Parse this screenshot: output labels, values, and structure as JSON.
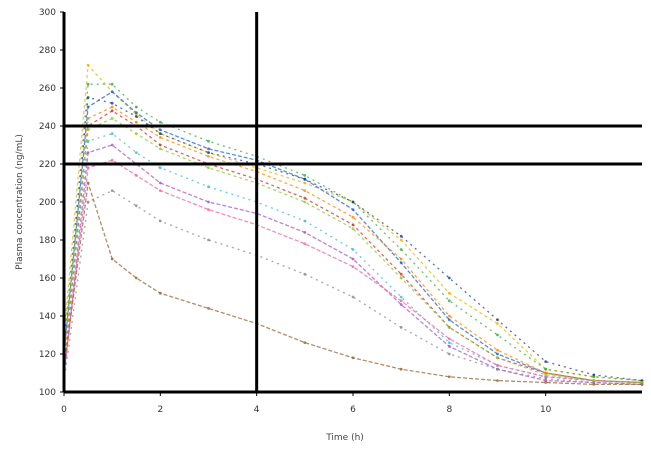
{
  "chart_data": {
    "type": "line",
    "title": "",
    "xlabel": "Time (h)",
    "ylabel": "Plasma concentration (ng/mL)",
    "xlim": [
      0,
      12
    ],
    "ylim": [
      100,
      300
    ],
    "x_ticks": [
      0,
      2,
      4,
      6,
      8,
      10
    ],
    "x_tick_labels": [
      "0",
      "2",
      "4",
      "6",
      "8",
      "10"
    ],
    "y_ticks": [
      100,
      120,
      140,
      160,
      180,
      200,
      220,
      240,
      260,
      280,
      300
    ],
    "y_tick_labels": [
      "100",
      "120",
      "140",
      "160",
      "180",
      "200",
      "220",
      "240",
      "260",
      "280",
      "300"
    ],
    "grid": false,
    "legend": "none",
    "reference_lines": [
      {
        "orientation": "vertical",
        "value": 4
      },
      {
        "orientation": "horizontal",
        "value": 240
      },
      {
        "orientation": "horizontal",
        "value": 220
      }
    ],
    "x": [
      0,
      0.5,
      1,
      1.5,
      2,
      3,
      4,
      5,
      6,
      7,
      8,
      9,
      10,
      11,
      12
    ],
    "series": [
      {
        "color": "#e6b800",
        "values": [
          130,
          272,
          258,
          246,
          236,
          226,
          218,
          210,
          200,
          180,
          152,
          136,
          112,
          108,
          106
        ]
      },
      {
        "color": "#33aa44",
        "values": [
          125,
          262,
          262,
          250,
          242,
          232,
          224,
          214,
          200,
          175,
          148,
          130,
          112,
          108,
          106
        ]
      },
      {
        "color": "#2266cc",
        "values": [
          120,
          250,
          258,
          247,
          238,
          228,
          222,
          212,
          196,
          168,
          138,
          120,
          110,
          106,
          105
        ]
      },
      {
        "color": "#cc3333",
        "values": [
          112,
          240,
          248,
          240,
          230,
          220,
          212,
          202,
          188,
          162,
          134,
          118,
          110,
          106,
          105
        ]
      },
      {
        "color": "#33bbcc",
        "values": [
          118,
          232,
          236,
          226,
          218,
          208,
          200,
          190,
          175,
          150,
          126,
          114,
          108,
          106,
          105
        ]
      },
      {
        "color": "#aa55cc",
        "values": [
          108,
          226,
          230,
          220,
          210,
          200,
          194,
          184,
          170,
          146,
          124,
          112,
          106,
          105,
          104
        ]
      },
      {
        "color": "#ff8800",
        "values": [
          115,
          244,
          250,
          242,
          234,
          224,
          216,
          206,
          192,
          170,
          140,
          122,
          110,
          106,
          105
        ]
      },
      {
        "color": "#1a3d99",
        "values": [
          122,
          255,
          252,
          245,
          236,
          226,
          220,
          212,
          200,
          182,
          160,
          138,
          116,
          109,
          106
        ]
      },
      {
        "color": "#ee66aa",
        "values": [
          110,
          218,
          222,
          214,
          206,
          196,
          188,
          178,
          166,
          148,
          128,
          114,
          108,
          106,
          105
        ]
      },
      {
        "color": "#88cc33",
        "values": [
          128,
          238,
          244,
          236,
          228,
          218,
          210,
          200,
          186,
          160,
          134,
          118,
          109,
          106,
          105
        ]
      },
      {
        "color": "#888888",
        "values": [
          105,
          200,
          206,
          198,
          190,
          180,
          172,
          162,
          150,
          134,
          120,
          112,
          107,
          105,
          104
        ]
      },
      {
        "color": "#996633",
        "values": [
          112,
          210,
          170,
          160,
          152,
          144,
          136,
          126,
          118,
          112,
          108,
          106,
          105,
          104,
          104
        ]
      }
    ]
  }
}
